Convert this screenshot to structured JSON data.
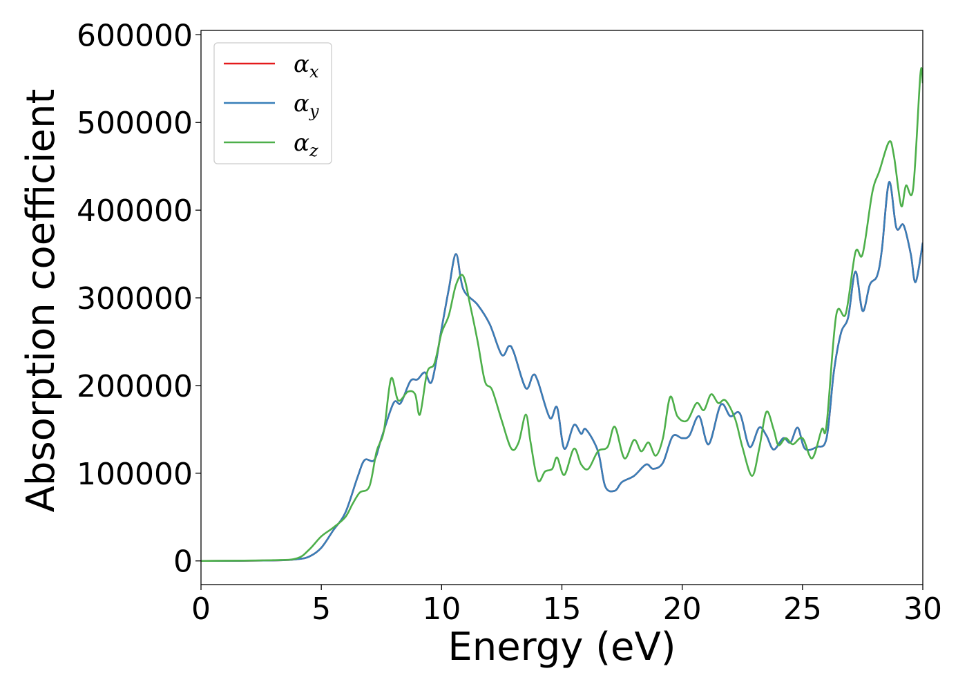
{
  "chart_data": {
    "type": "line",
    "title": "",
    "xlabel": "Energy (eV)",
    "ylabel": "Absorption coefficient",
    "xlim": [
      0,
      30
    ],
    "ylim": [
      -27000,
      605000
    ],
    "x_ticks": [
      0,
      5,
      10,
      15,
      20,
      25,
      30
    ],
    "x_tick_labels": [
      "0",
      "5",
      "10",
      "15",
      "20",
      "25",
      "30"
    ],
    "y_ticks": [
      0,
      100000,
      200000,
      300000,
      400000,
      500000,
      600000
    ],
    "y_tick_labels": [
      "0",
      "100000",
      "200000",
      "300000",
      "400000",
      "500000",
      "600000"
    ],
    "grid": false,
    "legend_position": "top-left",
    "series": [
      {
        "name": "α",
        "subscript": "x",
        "color": "#e41a1c",
        "points": [
          [
            0,
            0
          ],
          [
            3,
            500
          ],
          [
            4,
            2000
          ],
          [
            4.5,
            5000
          ],
          [
            5,
            15000
          ],
          [
            5.5,
            35000
          ],
          [
            6,
            55000
          ],
          [
            6.5,
            95000
          ],
          [
            6.8,
            115000
          ],
          [
            7.2,
            115000
          ],
          [
            7.5,
            140000
          ],
          [
            8,
            180000
          ],
          [
            8.3,
            180000
          ],
          [
            8.7,
            205000
          ],
          [
            9,
            207000
          ],
          [
            9.3,
            215000
          ],
          [
            9.6,
            205000
          ],
          [
            10,
            265000
          ],
          [
            10.3,
            310000
          ],
          [
            10.6,
            350000
          ],
          [
            10.9,
            310000
          ],
          [
            11.5,
            292000
          ],
          [
            12,
            270000
          ],
          [
            12.5,
            235000
          ],
          [
            12.8,
            245000
          ],
          [
            13,
            238000
          ],
          [
            13.5,
            197000
          ],
          [
            13.8,
            212000
          ],
          [
            14,
            205000
          ],
          [
            14.5,
            163000
          ],
          [
            14.8,
            175000
          ],
          [
            15.1,
            128000
          ],
          [
            15.5,
            155000
          ],
          [
            15.8,
            145000
          ],
          [
            16,
            150000
          ],
          [
            16.5,
            125000
          ],
          [
            16.8,
            85000
          ],
          [
            17.2,
            80000
          ],
          [
            17.5,
            90000
          ],
          [
            18,
            97000
          ],
          [
            18.5,
            110000
          ],
          [
            18.8,
            105000
          ],
          [
            19.2,
            112000
          ],
          [
            19.6,
            142000
          ],
          [
            20,
            140000
          ],
          [
            20.3,
            143000
          ],
          [
            20.7,
            165000
          ],
          [
            21.1,
            133000
          ],
          [
            21.6,
            178000
          ],
          [
            22,
            165000
          ],
          [
            22.4,
            168000
          ],
          [
            22.8,
            130000
          ],
          [
            23.2,
            152000
          ],
          [
            23.5,
            143000
          ],
          [
            23.8,
            127000
          ],
          [
            24.2,
            140000
          ],
          [
            24.5,
            135000
          ],
          [
            24.8,
            152000
          ],
          [
            25.1,
            128000
          ],
          [
            25.6,
            130000
          ],
          [
            26,
            140000
          ],
          [
            26.3,
            215000
          ],
          [
            26.6,
            260000
          ],
          [
            26.9,
            278000
          ],
          [
            27.2,
            330000
          ],
          [
            27.5,
            285000
          ],
          [
            27.8,
            315000
          ],
          [
            28.1,
            325000
          ],
          [
            28.3,
            355000
          ],
          [
            28.6,
            432000
          ],
          [
            28.9,
            380000
          ],
          [
            29.2,
            383000
          ],
          [
            29.5,
            350000
          ],
          [
            29.7,
            318000
          ],
          [
            30,
            363000
          ]
        ]
      },
      {
        "name": "α",
        "subscript": "y",
        "color": "#377eb8",
        "points": [
          [
            0,
            0
          ],
          [
            3,
            500
          ],
          [
            4,
            2000
          ],
          [
            4.5,
            5000
          ],
          [
            5,
            15000
          ],
          [
            5.5,
            35000
          ],
          [
            6,
            55000
          ],
          [
            6.5,
            95000
          ],
          [
            6.8,
            115000
          ],
          [
            7.2,
            115000
          ],
          [
            7.5,
            140000
          ],
          [
            8,
            180000
          ],
          [
            8.3,
            180000
          ],
          [
            8.7,
            205000
          ],
          [
            9,
            207000
          ],
          [
            9.3,
            215000
          ],
          [
            9.6,
            205000
          ],
          [
            10,
            265000
          ],
          [
            10.3,
            310000
          ],
          [
            10.6,
            350000
          ],
          [
            10.9,
            310000
          ],
          [
            11.5,
            292000
          ],
          [
            12,
            270000
          ],
          [
            12.5,
            235000
          ],
          [
            12.8,
            245000
          ],
          [
            13,
            238000
          ],
          [
            13.5,
            197000
          ],
          [
            13.8,
            212000
          ],
          [
            14,
            205000
          ],
          [
            14.5,
            163000
          ],
          [
            14.8,
            175000
          ],
          [
            15.1,
            128000
          ],
          [
            15.5,
            155000
          ],
          [
            15.8,
            145000
          ],
          [
            16,
            150000
          ],
          [
            16.5,
            125000
          ],
          [
            16.8,
            85000
          ],
          [
            17.2,
            80000
          ],
          [
            17.5,
            90000
          ],
          [
            18,
            97000
          ],
          [
            18.5,
            110000
          ],
          [
            18.8,
            105000
          ],
          [
            19.2,
            112000
          ],
          [
            19.6,
            142000
          ],
          [
            20,
            140000
          ],
          [
            20.3,
            143000
          ],
          [
            20.7,
            165000
          ],
          [
            21.1,
            133000
          ],
          [
            21.6,
            178000
          ],
          [
            22,
            165000
          ],
          [
            22.4,
            168000
          ],
          [
            22.8,
            130000
          ],
          [
            23.2,
            152000
          ],
          [
            23.5,
            143000
          ],
          [
            23.8,
            127000
          ],
          [
            24.2,
            140000
          ],
          [
            24.5,
            135000
          ],
          [
            24.8,
            152000
          ],
          [
            25.1,
            128000
          ],
          [
            25.6,
            130000
          ],
          [
            26,
            140000
          ],
          [
            26.3,
            215000
          ],
          [
            26.6,
            260000
          ],
          [
            26.9,
            278000
          ],
          [
            27.2,
            330000
          ],
          [
            27.5,
            285000
          ],
          [
            27.8,
            315000
          ],
          [
            28.1,
            325000
          ],
          [
            28.3,
            355000
          ],
          [
            28.6,
            432000
          ],
          [
            28.9,
            380000
          ],
          [
            29.2,
            383000
          ],
          [
            29.5,
            350000
          ],
          [
            29.7,
            318000
          ],
          [
            30,
            363000
          ]
        ]
      },
      {
        "name": "α",
        "subscript": "z",
        "color": "#4daf4a",
        "points": [
          [
            0,
            0
          ],
          [
            3,
            800
          ],
          [
            4,
            3000
          ],
          [
            4.5,
            13000
          ],
          [
            5,
            28000
          ],
          [
            5.5,
            38000
          ],
          [
            6,
            50000
          ],
          [
            6.3,
            65000
          ],
          [
            6.6,
            78000
          ],
          [
            7,
            85000
          ],
          [
            7.3,
            125000
          ],
          [
            7.6,
            148000
          ],
          [
            7.9,
            208000
          ],
          [
            8.2,
            183000
          ],
          [
            8.6,
            193000
          ],
          [
            8.9,
            190000
          ],
          [
            9.1,
            167000
          ],
          [
            9.4,
            215000
          ],
          [
            9.7,
            225000
          ],
          [
            10,
            260000
          ],
          [
            10.3,
            280000
          ],
          [
            10.6,
            315000
          ],
          [
            10.9,
            325000
          ],
          [
            11.2,
            290000
          ],
          [
            11.5,
            250000
          ],
          [
            11.8,
            205000
          ],
          [
            12.1,
            195000
          ],
          [
            12.5,
            160000
          ],
          [
            12.9,
            128000
          ],
          [
            13.2,
            135000
          ],
          [
            13.5,
            167000
          ],
          [
            13.7,
            135000
          ],
          [
            14,
            92000
          ],
          [
            14.3,
            102000
          ],
          [
            14.6,
            105000
          ],
          [
            14.8,
            118000
          ],
          [
            15.1,
            98000
          ],
          [
            15.5,
            128000
          ],
          [
            15.8,
            110000
          ],
          [
            16.1,
            105000
          ],
          [
            16.5,
            125000
          ],
          [
            16.9,
            130000
          ],
          [
            17.2,
            153000
          ],
          [
            17.6,
            117000
          ],
          [
            18,
            138000
          ],
          [
            18.3,
            125000
          ],
          [
            18.6,
            135000
          ],
          [
            18.9,
            120000
          ],
          [
            19.2,
            140000
          ],
          [
            19.5,
            187000
          ],
          [
            19.8,
            165000
          ],
          [
            20.2,
            160000
          ],
          [
            20.6,
            180000
          ],
          [
            20.9,
            172000
          ],
          [
            21.2,
            190000
          ],
          [
            21.5,
            180000
          ],
          [
            21.8,
            183000
          ],
          [
            22.2,
            162000
          ],
          [
            22.5,
            130000
          ],
          [
            22.9,
            97000
          ],
          [
            23.2,
            128000
          ],
          [
            23.5,
            170000
          ],
          [
            23.8,
            150000
          ],
          [
            24,
            132000
          ],
          [
            24.3,
            140000
          ],
          [
            24.6,
            133000
          ],
          [
            25,
            140000
          ],
          [
            25.4,
            117000
          ],
          [
            25.8,
            150000
          ],
          [
            26,
            155000
          ],
          [
            26.4,
            280000
          ],
          [
            26.8,
            282000
          ],
          [
            27.2,
            352000
          ],
          [
            27.5,
            350000
          ],
          [
            27.9,
            420000
          ],
          [
            28.2,
            445000
          ],
          [
            28.6,
            478000
          ],
          [
            28.8,
            462000
          ],
          [
            29.1,
            405000
          ],
          [
            29.3,
            428000
          ],
          [
            29.6,
            425000
          ],
          [
            29.9,
            555000
          ],
          [
            30,
            545000
          ]
        ]
      }
    ]
  }
}
